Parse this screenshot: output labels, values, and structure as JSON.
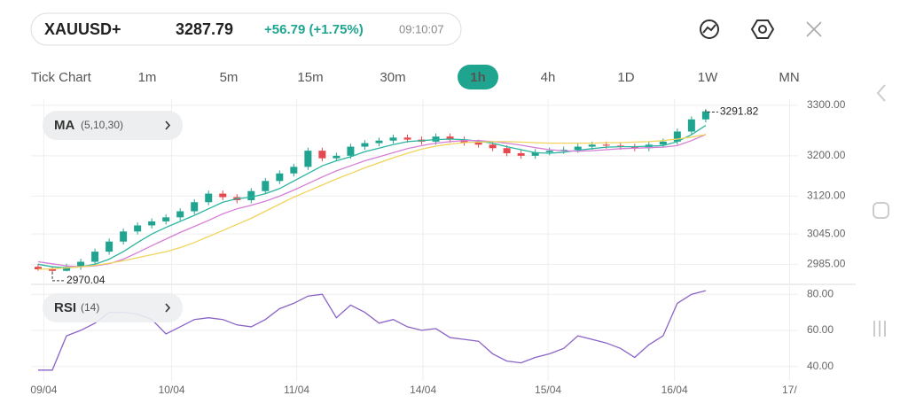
{
  "header": {
    "symbol": "XAUUSD+",
    "price": "3287.79",
    "change": "+56.79 (+1.75%)",
    "time": "09:10:07"
  },
  "timeframes": [
    "Tick Chart",
    "1m",
    "5m",
    "15m",
    "30m",
    "1h",
    "4h",
    "1D",
    "1W",
    "MN"
  ],
  "active_timeframe": 5,
  "chart_data": [
    {
      "type": "candlestick",
      "indicator": "MA",
      "indicator_params": "(5,10,30)",
      "up_color": "#1fa58f",
      "down_color": "#e5484d",
      "open": [
        2980,
        2975,
        2972,
        2980,
        2990,
        3010,
        3030,
        3050,
        3062,
        3070,
        3078,
        3090,
        3108,
        3125,
        3118,
        3112,
        3130,
        3150,
        3165,
        3178,
        3210,
        3195,
        3200,
        3218,
        3225,
        3230,
        3236,
        3232,
        3228,
        3238,
        3232,
        3226,
        3222,
        3215,
        3205,
        3200,
        3207,
        3210,
        3212,
        3218,
        3222,
        3220,
        3218,
        3215,
        3222,
        3228,
        3248,
        3272
      ],
      "high": [
        2986,
        2981,
        2986,
        2996,
        3016,
        3036,
        3056,
        3068,
        3076,
        3084,
        3096,
        3114,
        3131,
        3131,
        3124,
        3136,
        3156,
        3171,
        3184,
        3216,
        3216,
        3206,
        3224,
        3231,
        3236,
        3242,
        3242,
        3238,
        3244,
        3244,
        3238,
        3232,
        3228,
        3221,
        3211,
        3213,
        3216,
        3218,
        3224,
        3228,
        3228,
        3226,
        3224,
        3228,
        3234,
        3254,
        3278,
        3291.82
      ],
      "low": [
        2972,
        2970.04,
        2971,
        2974,
        2984,
        3004,
        3024,
        3044,
        3056,
        3064,
        3072,
        3084,
        3102,
        3112,
        3106,
        3106,
        3124,
        3144,
        3159,
        3172,
        3189,
        3189,
        3194,
        3212,
        3219,
        3224,
        3226,
        3222,
        3222,
        3226,
        3220,
        3216,
        3209,
        3199,
        3194,
        3194,
        3201,
        3204,
        3206,
        3212,
        3214,
        3212,
        3209,
        3209,
        3216,
        3222,
        3242,
        3266
      ],
      "close": [
        2975,
        2972,
        2980,
        2990,
        3010,
        3030,
        3050,
        3062,
        3070,
        3078,
        3090,
        3108,
        3125,
        3118,
        3112,
        3130,
        3150,
        3165,
        3178,
        3210,
        3195,
        3200,
        3218,
        3225,
        3230,
        3236,
        3232,
        3228,
        3238,
        3232,
        3226,
        3222,
        3215,
        3205,
        3200,
        3207,
        3210,
        3212,
        3218,
        3222,
        3220,
        3218,
        3215,
        3222,
        3228,
        3248,
        3272,
        3288
      ],
      "series": [
        {
          "color": "#2bb5a0",
          "values": [
            2985,
            2980,
            2978,
            2980,
            2985,
            2995,
            3010,
            3028,
            3045,
            3058,
            3070,
            3082,
            3095,
            3108,
            3115,
            3118,
            3125,
            3135,
            3150,
            3165,
            3180,
            3190,
            3198,
            3208,
            3215,
            3222,
            3228,
            3230,
            3232,
            3233,
            3232,
            3229,
            3225,
            3218,
            3212,
            3206,
            3205,
            3207,
            3211,
            3214,
            3217,
            3218,
            3218,
            3219,
            3220,
            3228,
            3242,
            3260
          ]
        },
        {
          "color": "#d67fd6",
          "values": [
            2990,
            2986,
            2982,
            2980,
            2982,
            2986,
            2995,
            3008,
            3022,
            3035,
            3048,
            3060,
            3072,
            3085,
            3095,
            3102,
            3110,
            3120,
            3132,
            3145,
            3158,
            3170,
            3180,
            3190,
            3198,
            3206,
            3214,
            3220,
            3225,
            3228,
            3230,
            3230,
            3228,
            3225,
            3221,
            3216,
            3212,
            3210,
            3209,
            3210,
            3212,
            3214,
            3215,
            3216,
            3217,
            3220,
            3230,
            3242
          ]
        },
        {
          "color": "#f0d45c",
          "values": [
            2975,
            2976,
            2978,
            2980,
            2983,
            2987,
            2992,
            2998,
            3004,
            3010,
            3018,
            3028,
            3040,
            3052,
            3064,
            3076,
            3090,
            3104,
            3118,
            3130,
            3142,
            3154,
            3165,
            3176,
            3186,
            3196,
            3205,
            3213,
            3219,
            3223,
            3226,
            3227,
            3228,
            3228,
            3227,
            3226,
            3225,
            3225,
            3225,
            3225,
            3226,
            3226,
            3227,
            3228,
            3230,
            3233,
            3237,
            3242
          ]
        }
      ],
      "xlim": [
        -0.5,
        53.5
      ],
      "ylim": [
        2947,
        3312
      ],
      "yticks": [
        {
          "value": 3300,
          "label": "3300.00"
        },
        {
          "value": 3200,
          "label": "3200.00"
        },
        {
          "value": 3120,
          "label": "3120.00"
        },
        {
          "value": 3045,
          "label": "3045.00"
        },
        {
          "value": 2985,
          "label": "2985.00"
        }
      ],
      "grid": true
    },
    {
      "type": "line",
      "indicator": "RSI",
      "indicator_params": "(14)",
      "color": "#8a63c7",
      "values": [
        38,
        38,
        57,
        60,
        64,
        70,
        70,
        69,
        66,
        58,
        62,
        66,
        67,
        66,
        63,
        62,
        66,
        72,
        75,
        79,
        80,
        67,
        74,
        70,
        64,
        66,
        62,
        60,
        61,
        56,
        55,
        54,
        47,
        43,
        42,
        45,
        47,
        50,
        57,
        55,
        53,
        50,
        45,
        52,
        57,
        75,
        80,
        82
      ],
      "xlim": [
        -0.5,
        53.5
      ],
      "ylim": [
        32,
        85
      ],
      "xticks": [
        {
          "value": 0.4,
          "label": "09/04"
        },
        {
          "value": 9.4,
          "label": "10/04"
        },
        {
          "value": 18.2,
          "label": "11/04"
        },
        {
          "value": 27.1,
          "label": "14/04"
        },
        {
          "value": 35.9,
          "label": "15/04"
        },
        {
          "value": 44.8,
          "label": "16/04"
        },
        {
          "value": 52.9,
          "label": "17/"
        }
      ],
      "yticks": [
        {
          "value": 80,
          "label": "80.00"
        },
        {
          "value": 60,
          "label": "60.00"
        },
        {
          "value": 40,
          "label": "40.00"
        }
      ],
      "grid": true
    }
  ]
}
